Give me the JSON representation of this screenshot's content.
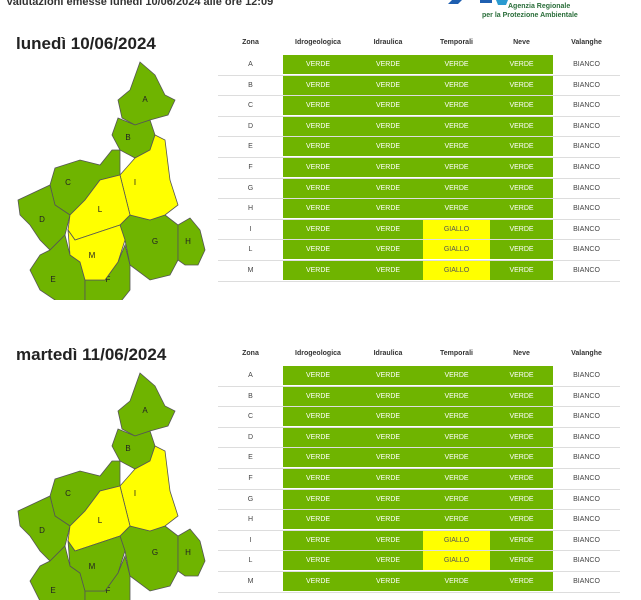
{
  "header": {
    "text": "Valutazioni emesse lunedì 10/06/2024 alle ore 12:09",
    "logo_line1": "Agenzia Regionale",
    "logo_line2": "per la Protezione Ambientale"
  },
  "columns": [
    "Zona",
    "Idrogeologica",
    "Idraulica",
    "Temporali",
    "Neve",
    "Valanghe"
  ],
  "colors": {
    "VERDE": "#6fb400",
    "GIALLO": "#ffff00",
    "BIANCO": "#ffffff"
  },
  "days": [
    {
      "title": "lunedì 10/06/2024",
      "rows": [
        [
          "A",
          "VERDE",
          "VERDE",
          "VERDE",
          "VERDE",
          "BIANCO"
        ],
        [
          "B",
          "VERDE",
          "VERDE",
          "VERDE",
          "VERDE",
          "BIANCO"
        ],
        [
          "C",
          "VERDE",
          "VERDE",
          "VERDE",
          "VERDE",
          "BIANCO"
        ],
        [
          "D",
          "VERDE",
          "VERDE",
          "VERDE",
          "VERDE",
          "BIANCO"
        ],
        [
          "E",
          "VERDE",
          "VERDE",
          "VERDE",
          "VERDE",
          "BIANCO"
        ],
        [
          "F",
          "VERDE",
          "VERDE",
          "VERDE",
          "VERDE",
          "BIANCO"
        ],
        [
          "G",
          "VERDE",
          "VERDE",
          "VERDE",
          "VERDE",
          "BIANCO"
        ],
        [
          "H",
          "VERDE",
          "VERDE",
          "VERDE",
          "VERDE",
          "BIANCO"
        ],
        [
          "I",
          "VERDE",
          "VERDE",
          "GIALLO",
          "VERDE",
          "BIANCO"
        ],
        [
          "L",
          "VERDE",
          "VERDE",
          "GIALLO",
          "VERDE",
          "BIANCO"
        ],
        [
          "M",
          "VERDE",
          "VERDE",
          "GIALLO",
          "VERDE",
          "BIANCO"
        ]
      ]
    },
    {
      "title": "martedì 11/06/2024",
      "rows": [
        [
          "A",
          "VERDE",
          "VERDE",
          "VERDE",
          "VERDE",
          "BIANCO"
        ],
        [
          "B",
          "VERDE",
          "VERDE",
          "VERDE",
          "VERDE",
          "BIANCO"
        ],
        [
          "C",
          "VERDE",
          "VERDE",
          "VERDE",
          "VERDE",
          "BIANCO"
        ],
        [
          "D",
          "VERDE",
          "VERDE",
          "VERDE",
          "VERDE",
          "BIANCO"
        ],
        [
          "E",
          "VERDE",
          "VERDE",
          "VERDE",
          "VERDE",
          "BIANCO"
        ],
        [
          "F",
          "VERDE",
          "VERDE",
          "VERDE",
          "VERDE",
          "BIANCO"
        ],
        [
          "G",
          "VERDE",
          "VERDE",
          "VERDE",
          "VERDE",
          "BIANCO"
        ],
        [
          "H",
          "VERDE",
          "VERDE",
          "VERDE",
          "VERDE",
          "BIANCO"
        ],
        [
          "I",
          "VERDE",
          "VERDE",
          "GIALLO",
          "VERDE",
          "BIANCO"
        ],
        [
          "L",
          "VERDE",
          "VERDE",
          "GIALLO",
          "VERDE",
          "BIANCO"
        ],
        [
          "M",
          "VERDE",
          "VERDE",
          "VERDE",
          "VERDE",
          "BIANCO"
        ]
      ]
    }
  ]
}
